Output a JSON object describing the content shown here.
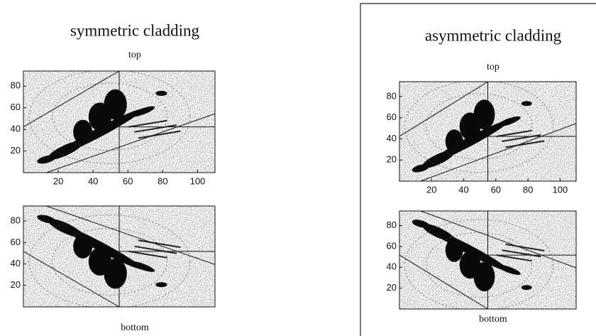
{
  "panels": [
    {
      "title": "symmetric cladding",
      "top_label": "top",
      "bottom_label": "bottom",
      "plots": [
        {
          "xlim": [
            0,
            110
          ],
          "ylim": [
            0,
            94
          ],
          "xticks": [
            20,
            40,
            60,
            80,
            100
          ],
          "yticks": [
            20,
            40,
            60,
            80
          ]
        },
        {
          "ylim": [
            0,
            94
          ],
          "yticks": [
            20,
            40,
            60,
            80
          ]
        }
      ]
    },
    {
      "title": "asymmetric cladding",
      "top_label": "top",
      "bottom_label": "bottom",
      "plots": [
        {
          "xlim": [
            0,
            110
          ],
          "ylim": [
            0,
            94
          ],
          "xticks": [
            20,
            40,
            60,
            80,
            100
          ],
          "yticks": [
            20,
            40,
            60,
            80
          ]
        },
        {
          "ylim": [
            0,
            94
          ],
          "yticks": [
            20,
            40,
            60,
            80
          ]
        }
      ]
    }
  ]
}
